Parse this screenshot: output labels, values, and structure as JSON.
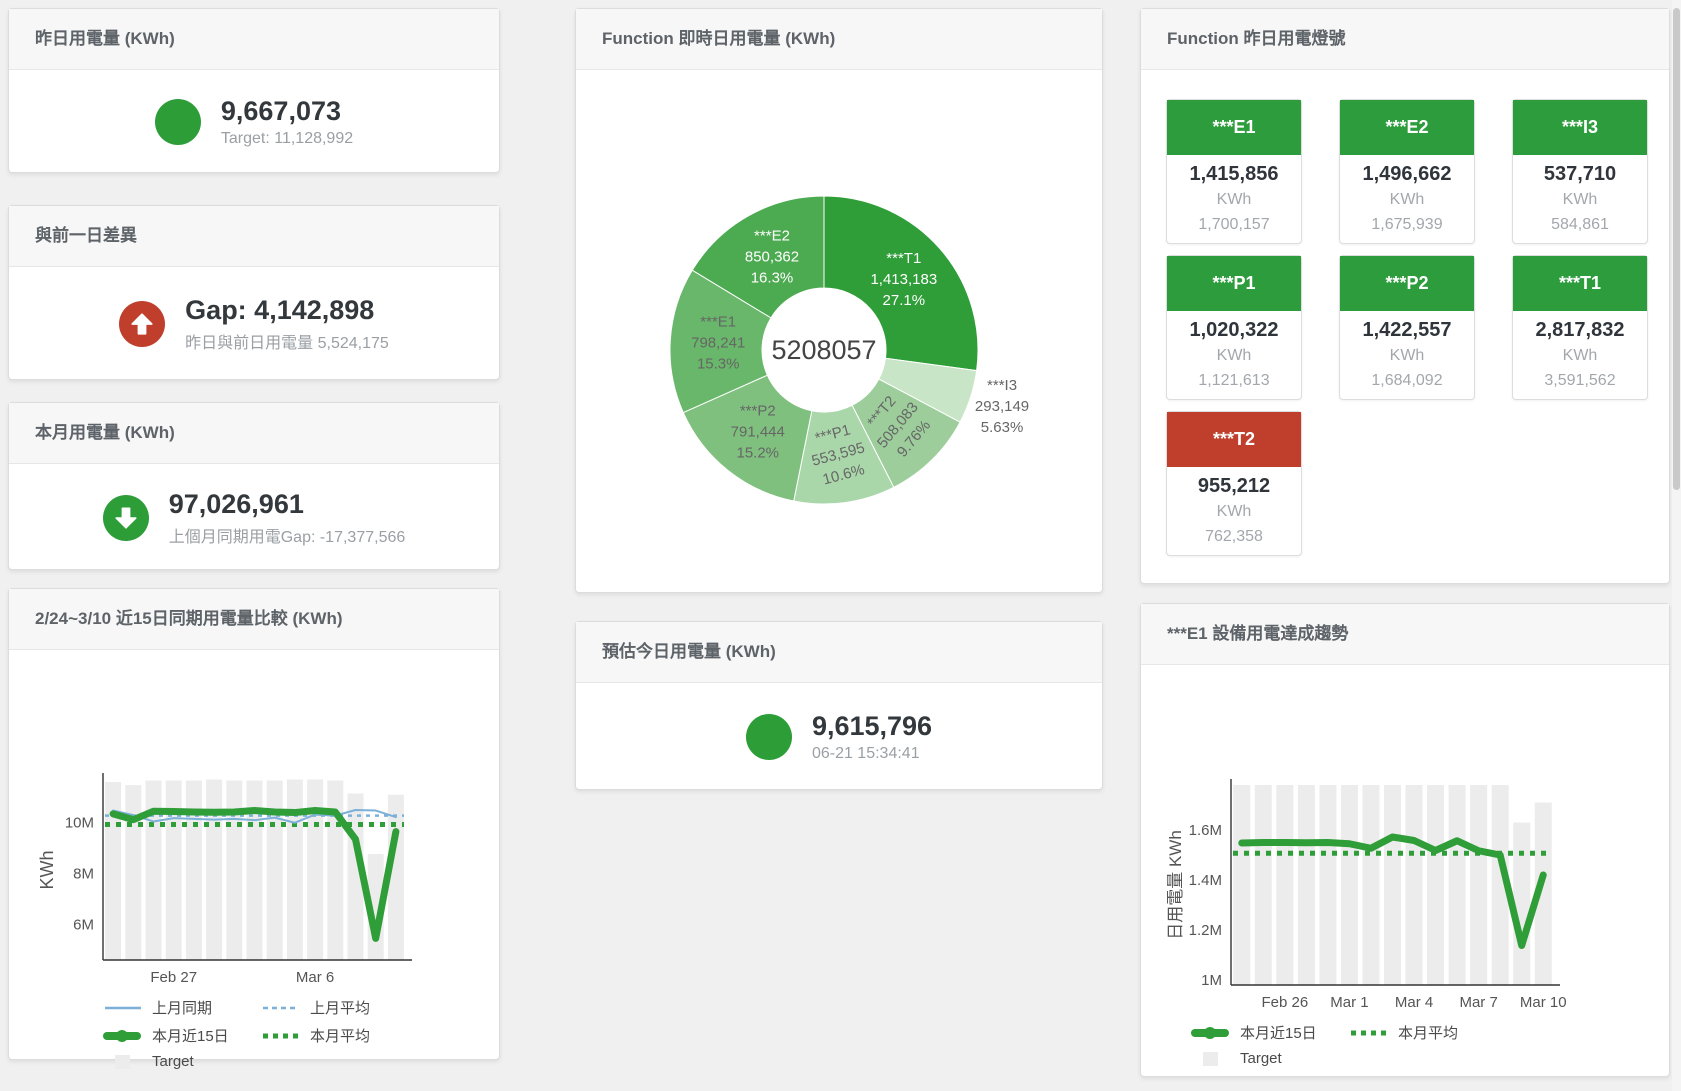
{
  "page": {
    "bg": "#f0f0f0"
  },
  "cards": {
    "yesterday": {
      "title": "昨日用電量 (KWh)",
      "value": "9,667,073",
      "sub": "Target: 11,128,992",
      "indicator": {
        "shape": "circle",
        "color": "#2d9d38"
      }
    },
    "day_gap": {
      "title": "與前一日差異",
      "value": "Gap: 4,142,898",
      "sub": "昨日與前日用電量 5,524,175",
      "indicator": {
        "shape": "arrow-up",
        "color": "#bf3f2c"
      }
    },
    "month": {
      "title": "本月用電量 (KWh)",
      "value": "97,026,961",
      "sub": "上個月同期用電Gap: -17,377,566",
      "indicator": {
        "shape": "arrow-down",
        "color": "#2d9d38"
      }
    },
    "estimate": {
      "title": "預估今日用電量 (KWh)",
      "value": "9,615,796",
      "sub": "06-21 15:34:41",
      "indicator": {
        "shape": "circle",
        "color": "#2d9d38"
      }
    },
    "realtime": {
      "title": "Function 即時日用電量 (KWh)",
      "chart_data": {
        "type": "pie",
        "center_label": "5208057",
        "slices": [
          {
            "name": "***T1",
            "value": 1413183,
            "value_str": "1,413,183",
            "pct": "27.1%",
            "color": "#2f9e38",
            "label_color": "#ffffff",
            "rot": 0,
            "outside": false
          },
          {
            "name": "***I3",
            "value": 293149,
            "value_str": "293,149",
            "pct": "5.63%",
            "color": "#c9e5c8",
            "label_color": "#666666",
            "rot": 0,
            "outside": true
          },
          {
            "name": "***T2",
            "value": 508083,
            "value_str": "508,083",
            "pct": "9.76%",
            "color": "#9ccd9b",
            "label_color": "#666666",
            "rot": -50,
            "outside": false
          },
          {
            "name": "***P1",
            "value": 553595,
            "value_str": "553,595",
            "pct": "10.6%",
            "color": "#aad7aa",
            "label_color": "#666666",
            "rot": -15,
            "outside": false
          },
          {
            "name": "***P2",
            "value": 791444,
            "value_str": "791,444",
            "pct": "15.2%",
            "color": "#7fc07f",
            "label_color": "#666666",
            "rot": 0,
            "outside": false
          },
          {
            "name": "***E1",
            "value": 798241,
            "value_str": "798,241",
            "pct": "15.3%",
            "color": "#68b76a",
            "label_color": "#666666",
            "rot": 0,
            "outside": false
          },
          {
            "name": "***E2",
            "value": 850362,
            "value_str": "850,362",
            "pct": "16.3%",
            "color": "#4caa50",
            "label_color": "#ffffff",
            "rot": 0,
            "outside": false
          }
        ]
      }
    },
    "lights": {
      "title": "Function 昨日用電燈號",
      "unit": "KWh",
      "tiles": [
        {
          "label": "***E1",
          "value": "1,415,856",
          "target": "1,700,157",
          "color": "#2c9c3c"
        },
        {
          "label": "***E2",
          "value": "1,496,662",
          "target": "1,675,939",
          "color": "#2c9c3c"
        },
        {
          "label": "***I3",
          "value": "537,710",
          "target": "584,861",
          "color": "#2c9c3c"
        },
        {
          "label": "***P1",
          "value": "1,020,322",
          "target": "1,121,613",
          "color": "#2c9c3c"
        },
        {
          "label": "***P2",
          "value": "1,422,557",
          "target": "1,684,092",
          "color": "#2c9c3c"
        },
        {
          "label": "***T1",
          "value": "2,817,832",
          "target": "3,591,562",
          "color": "#2c9c3c"
        },
        {
          "label": "***T2",
          "value": "955,212",
          "target": "762,358",
          "color": "#bf3f2c"
        }
      ]
    },
    "compare15": {
      "title": "2/24~3/10 近15日同期用電量比較 (KWh)",
      "chart_data": {
        "type": "line",
        "ylabel": "KWh",
        "n": 15,
        "ylim": [
          4.6,
          11.72
        ],
        "y_ticks": [
          {
            "label": "6M",
            "v": 6
          },
          {
            "label": "8M",
            "v": 8
          },
          {
            "label": "10M",
            "v": 10
          }
        ],
        "x_ticks": [
          {
            "label": "Feb 27",
            "i": 3
          },
          {
            "label": "Mar 6",
            "i": 10
          }
        ],
        "target_bars": {
          "name": "Target",
          "color": "#ececec",
          "values": [
            11.6,
            11.48,
            11.66,
            11.66,
            11.66,
            11.7,
            11.66,
            11.66,
            11.66,
            11.7,
            11.7,
            11.66,
            11.15,
            8.77,
            11.1
          ]
        },
        "hlines": [
          {
            "name": "上月平均",
            "v": 10.28,
            "color": "#7db0d8",
            "style": "dashed",
            "width": 2.5
          },
          {
            "name": "本月平均",
            "v": 9.93,
            "color": "#2f9e38",
            "style": "dotted",
            "width": 5
          }
        ],
        "lines": [
          {
            "name": "上月同期",
            "color": "#7db0d8",
            "width": 2,
            "values": [
              10.48,
              10.3,
              10.05,
              10.18,
              10.15,
              10.12,
              10.15,
              10.1,
              10.2,
              10.0,
              10.32,
              10.28,
              10.5,
              10.48,
              10.22
            ]
          },
          {
            "name": "本月近15日",
            "color": "#2f9e38",
            "width": 7,
            "values": [
              10.35,
              10.12,
              10.45,
              10.44,
              10.42,
              10.41,
              10.42,
              10.48,
              10.42,
              10.4,
              10.48,
              10.42,
              9.35,
              5.45,
              9.65
            ]
          }
        ],
        "legend": [
          {
            "label": "上月同期",
            "swatch": "line",
            "color": "#7db0d8"
          },
          {
            "label": "上月平均",
            "swatch": "dashed",
            "color": "#7db0d8"
          },
          {
            "label": "本月近15日",
            "swatch": "thick",
            "color": "#2f9e38"
          },
          {
            "label": "本月平均",
            "swatch": "dotted",
            "color": "#2f9e38"
          },
          {
            "label": "Target",
            "swatch": "box",
            "color": "#ececec"
          }
        ]
      }
    },
    "e1trend": {
      "title": "***E1 設備用電達成趨勢",
      "chart_data": {
        "type": "line",
        "ylabel": "日用電量 KWh",
        "n": 15,
        "ylim": [
          0.98,
          1.78
        ],
        "y_ticks": [
          {
            "label": "1M",
            "v": 1
          },
          {
            "label": "1.2M",
            "v": 1.2
          },
          {
            "label": "1.4M",
            "v": 1.4
          },
          {
            "label": "1.6M",
            "v": 1.6
          }
        ],
        "x_ticks": [
          {
            "label": "Feb 26",
            "i": 2
          },
          {
            "label": "Mar 1",
            "i": 5
          },
          {
            "label": "Mar 4",
            "i": 8
          },
          {
            "label": "Mar 7",
            "i": 11
          },
          {
            "label": "Mar 10",
            "i": 14
          }
        ],
        "target_bars": {
          "name": "Target",
          "color": "#ececec",
          "values": [
            1.78,
            1.78,
            1.78,
            1.78,
            1.78,
            1.78,
            1.78,
            1.78,
            1.78,
            1.78,
            1.78,
            1.78,
            1.78,
            1.63,
            1.71
          ]
        },
        "hlines": [
          {
            "name": "本月平均",
            "v": 1.507,
            "color": "#2f9e38",
            "style": "dotted",
            "width": 5
          }
        ],
        "lines": [
          {
            "name": "本月近15日",
            "color": "#2f9e38",
            "width": 7,
            "values": [
              1.548,
              1.55,
              1.55,
              1.549,
              1.55,
              1.545,
              1.527,
              1.572,
              1.558,
              1.518,
              1.557,
              1.517,
              1.5,
              1.138,
              1.42
            ]
          }
        ],
        "legend": [
          {
            "label": "本月近15日",
            "swatch": "thick",
            "color": "#2f9e38"
          },
          {
            "label": "本月平均",
            "swatch": "dotted",
            "color": "#2f9e38"
          },
          {
            "label": "Target",
            "swatch": "box",
            "color": "#ececec"
          }
        ]
      }
    }
  }
}
